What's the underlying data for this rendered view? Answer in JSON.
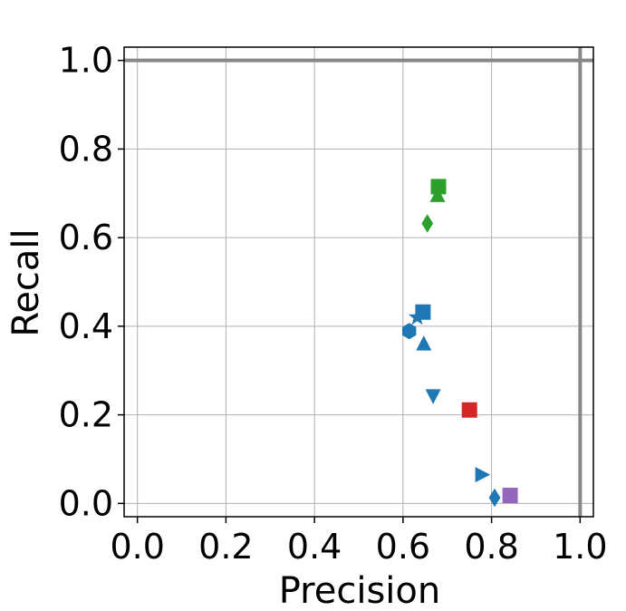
{
  "chart_data": {
    "type": "scatter",
    "xlabel": "Precision",
    "ylabel": "Recall",
    "xlim": [
      -0.03,
      1.03
    ],
    "ylim": [
      -0.03,
      1.03
    ],
    "grid": true,
    "reference_lines": {
      "x": 1.0,
      "y": 1.0,
      "color": "#888888"
    },
    "x_ticks": [
      "0.0",
      "0.2",
      "0.4",
      "0.6",
      "0.8",
      "1.0"
    ],
    "y_ticks": [
      "0.0",
      "0.2",
      "0.4",
      "0.6",
      "0.8",
      "1.0"
    ],
    "points": [
      {
        "x": 0.68,
        "y": 0.715,
        "marker": "square",
        "color": "#2ca02c"
      },
      {
        "x": 0.678,
        "y": 0.695,
        "marker": "triangle-up",
        "color": "#2ca02c"
      },
      {
        "x": 0.655,
        "y": 0.632,
        "marker": "diamond",
        "color": "#2ca02c"
      },
      {
        "x": 0.645,
        "y": 0.432,
        "marker": "square",
        "color": "#1f77b4"
      },
      {
        "x": 0.632,
        "y": 0.42,
        "marker": "star",
        "color": "#1f77b4"
      },
      {
        "x": 0.614,
        "y": 0.389,
        "marker": "hexagon",
        "color": "#1f77b4"
      },
      {
        "x": 0.647,
        "y": 0.36,
        "marker": "triangle-up",
        "color": "#1f77b4"
      },
      {
        "x": 0.668,
        "y": 0.243,
        "marker": "triangle-down",
        "color": "#1f77b4"
      },
      {
        "x": 0.75,
        "y": 0.211,
        "marker": "square",
        "color": "#d62728"
      },
      {
        "x": 0.778,
        "y": 0.065,
        "marker": "triangle-right",
        "color": "#1f77b4"
      },
      {
        "x": 0.807,
        "y": 0.013,
        "marker": "diamond",
        "color": "#1f77b4"
      },
      {
        "x": 0.842,
        "y": 0.018,
        "marker": "square",
        "color": "#9467bd"
      }
    ]
  }
}
